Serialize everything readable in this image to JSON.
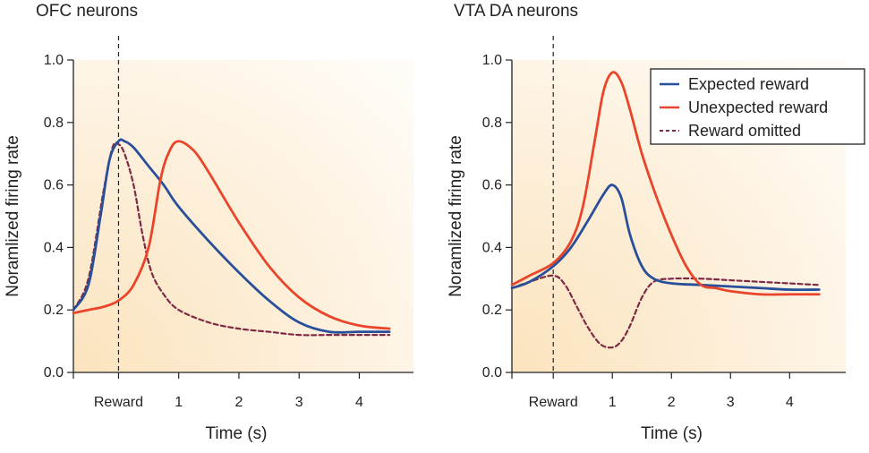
{
  "chart_data": [
    {
      "type": "line",
      "title": "OFC neurons",
      "xlabel": "Time (s)",
      "ylabel": "Noramlized firing rate",
      "xlim": [
        -0.75,
        4.9
      ],
      "ylim": [
        0.0,
        1.0
      ],
      "x_ticks": [
        {
          "value": 0,
          "label": "Reward"
        },
        {
          "value": 1,
          "label": "1"
        },
        {
          "value": 2,
          "label": "2"
        },
        {
          "value": 3,
          "label": "3"
        },
        {
          "value": 4,
          "label": "4"
        }
      ],
      "y_ticks": [
        "0.0",
        "0.2",
        "0.4",
        "0.6",
        "0.8",
        "1.0"
      ],
      "reward_marker_x": 0,
      "grid": false,
      "series": [
        {
          "name": "Expected reward",
          "color": "#2a4f9a",
          "dash": "solid",
          "x": [
            -0.75,
            -0.5,
            -0.3,
            -0.15,
            0.0,
            0.1,
            0.25,
            0.5,
            0.75,
            1.0,
            1.5,
            2.0,
            2.5,
            3.0,
            3.5,
            4.0,
            4.5
          ],
          "y": [
            0.2,
            0.28,
            0.5,
            0.68,
            0.74,
            0.74,
            0.72,
            0.66,
            0.6,
            0.53,
            0.42,
            0.32,
            0.23,
            0.16,
            0.13,
            0.13,
            0.13
          ]
        },
        {
          "name": "Unexpected reward",
          "color": "#e8452a",
          "dash": "solid",
          "x": [
            -0.75,
            -0.5,
            -0.25,
            0.0,
            0.25,
            0.5,
            0.7,
            0.85,
            1.0,
            1.25,
            1.5,
            2.0,
            2.5,
            3.0,
            3.5,
            4.0,
            4.5
          ],
          "y": [
            0.19,
            0.2,
            0.21,
            0.23,
            0.28,
            0.4,
            0.62,
            0.71,
            0.74,
            0.71,
            0.64,
            0.48,
            0.34,
            0.24,
            0.18,
            0.15,
            0.14
          ]
        },
        {
          "name": "Reward omitted",
          "color": "#7e2a45",
          "dash": "dashed",
          "x": [
            -0.75,
            -0.5,
            -0.25,
            -0.1,
            0.0,
            0.1,
            0.25,
            0.4,
            0.55,
            0.75,
            1.0,
            1.5,
            2.0,
            2.5,
            3.0,
            3.5,
            4.0,
            4.5
          ],
          "y": [
            0.2,
            0.3,
            0.58,
            0.72,
            0.73,
            0.7,
            0.6,
            0.44,
            0.32,
            0.25,
            0.2,
            0.16,
            0.14,
            0.13,
            0.12,
            0.12,
            0.12,
            0.12
          ]
        }
      ]
    },
    {
      "type": "line",
      "title": "VTA DA neurons",
      "xlabel": "Time (s)",
      "ylabel": "Noramlized firing rate",
      "xlim": [
        -0.7,
        4.95
      ],
      "ylim": [
        0.0,
        1.0
      ],
      "x_ticks": [
        {
          "value": 0,
          "label": "Reward"
        },
        {
          "value": 1,
          "label": "1"
        },
        {
          "value": 2,
          "label": "2"
        },
        {
          "value": 3,
          "label": "3"
        },
        {
          "value": 4,
          "label": "4"
        }
      ],
      "y_ticks": [
        "0.0",
        "0.2",
        "0.4",
        "0.6",
        "0.8",
        "1.0"
      ],
      "reward_marker_x": 0,
      "grid": false,
      "legend_position": "top-right",
      "series": [
        {
          "name": "Expected reward",
          "color": "#2a4f9a",
          "dash": "solid",
          "x": [
            -0.7,
            -0.4,
            0.0,
            0.3,
            0.6,
            0.85,
            1.0,
            1.15,
            1.3,
            1.5,
            1.7,
            2.0,
            2.5,
            3.0,
            3.5,
            4.0,
            4.5
          ],
          "y": [
            0.27,
            0.29,
            0.34,
            0.4,
            0.49,
            0.57,
            0.6,
            0.56,
            0.44,
            0.34,
            0.3,
            0.285,
            0.28,
            0.275,
            0.27,
            0.265,
            0.265
          ]
        },
        {
          "name": "Unexpected reward",
          "color": "#e8452a",
          "dash": "solid",
          "x": [
            -0.7,
            -0.4,
            0.0,
            0.3,
            0.5,
            0.7,
            0.85,
            1.0,
            1.15,
            1.3,
            1.5,
            1.75,
            2.0,
            2.25,
            2.5,
            2.75,
            3.0,
            3.5,
            4.0,
            4.5
          ],
          "y": [
            0.28,
            0.31,
            0.35,
            0.42,
            0.53,
            0.74,
            0.9,
            0.96,
            0.93,
            0.84,
            0.7,
            0.56,
            0.44,
            0.34,
            0.28,
            0.27,
            0.26,
            0.25,
            0.25,
            0.25
          ]
        },
        {
          "name": "Reward omitted",
          "color": "#7e2a45",
          "dash": "dashed",
          "x": [
            -0.7,
            -0.4,
            0.0,
            0.2,
            0.4,
            0.6,
            0.8,
            1.0,
            1.15,
            1.3,
            1.5,
            1.7,
            2.0,
            2.5,
            3.0,
            3.5,
            4.0,
            4.5
          ],
          "y": [
            0.27,
            0.29,
            0.31,
            0.28,
            0.21,
            0.14,
            0.09,
            0.08,
            0.1,
            0.15,
            0.24,
            0.29,
            0.3,
            0.3,
            0.295,
            0.29,
            0.285,
            0.28
          ]
        }
      ]
    }
  ]
}
